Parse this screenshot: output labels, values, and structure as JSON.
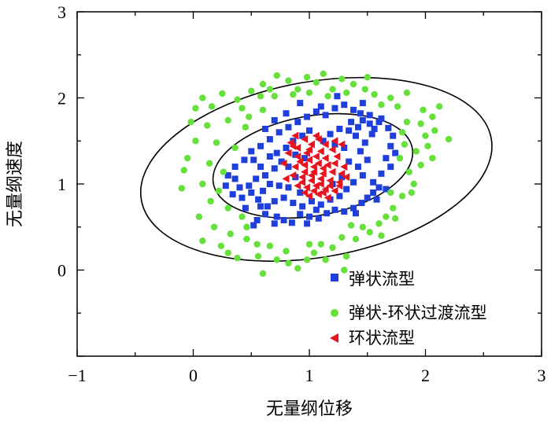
{
  "chart_data": {
    "type": "scatter",
    "title": "",
    "xlabel": "无量纲位移",
    "ylabel": "无量纲速度",
    "xlim": [
      -1,
      3
    ],
    "ylim": [
      -1,
      3
    ],
    "xticks": [
      "−1",
      "0",
      "1",
      "2",
      "3"
    ],
    "yticks": [
      "0",
      "1",
      "2",
      "3"
    ],
    "grid": false,
    "legend_position": "bottom-right",
    "ellipses": [
      {
        "name": "inner-boundary",
        "center": [
          1.03,
          1.21
        ],
        "semi_axes": [
          0.87,
          0.58
        ],
        "angle_deg": 10
      },
      {
        "name": "outer-boundary",
        "center": [
          1.06,
          1.17
        ],
        "semi_axes": [
          1.53,
          1.02
        ],
        "angle_deg": 10
      }
    ],
    "series": [
      {
        "name": "弹状流型",
        "marker": "square",
        "color": "#1f3fdc",
        "points": [
          [
            0.52,
            0.52
          ],
          [
            0.55,
            0.58
          ],
          [
            0.62,
            0.65
          ],
          [
            0.45,
            0.72
          ],
          [
            0.58,
            0.74
          ],
          [
            0.72,
            0.62
          ],
          [
            0.78,
            0.58
          ],
          [
            0.85,
            0.55
          ],
          [
            0.92,
            0.65
          ],
          [
            1.0,
            0.62
          ],
          [
            1.08,
            0.6
          ],
          [
            1.15,
            0.66
          ],
          [
            1.22,
            0.7
          ],
          [
            1.3,
            0.68
          ],
          [
            1.38,
            0.72
          ],
          [
            1.45,
            0.78
          ],
          [
            1.5,
            0.84
          ],
          [
            1.55,
            0.9
          ],
          [
            1.6,
            0.96
          ],
          [
            1.55,
            1.02
          ],
          [
            1.62,
            1.12
          ],
          [
            1.7,
            1.2
          ],
          [
            1.66,
            1.3
          ],
          [
            1.7,
            1.44
          ],
          [
            1.72,
            1.56
          ],
          [
            1.68,
            1.65
          ],
          [
            1.6,
            1.72
          ],
          [
            1.52,
            1.8
          ],
          [
            1.44,
            1.82
          ],
          [
            1.38,
            1.86
          ],
          [
            1.3,
            1.92
          ],
          [
            1.22,
            1.88
          ],
          [
            1.14,
            1.8
          ],
          [
            1.06,
            1.84
          ],
          [
            0.98,
            1.78
          ],
          [
            0.9,
            1.72
          ],
          [
            0.82,
            1.66
          ],
          [
            0.74,
            1.6
          ],
          [
            0.66,
            1.52
          ],
          [
            0.58,
            1.44
          ],
          [
            0.5,
            1.38
          ],
          [
            0.44,
            1.28
          ],
          [
            0.36,
            1.2
          ],
          [
            0.3,
            1.1
          ],
          [
            0.28,
            0.98
          ],
          [
            0.34,
            0.88
          ],
          [
            0.42,
            0.84
          ],
          [
            0.5,
            0.9
          ],
          [
            0.6,
            0.92
          ],
          [
            0.66,
            1.0
          ],
          [
            0.62,
            1.1
          ],
          [
            0.7,
            1.18
          ],
          [
            0.76,
            1.26
          ],
          [
            0.72,
            1.36
          ],
          [
            0.8,
            1.42
          ],
          [
            0.86,
            1.5
          ],
          [
            0.94,
            1.56
          ],
          [
            1.0,
            1.62
          ],
          [
            1.18,
            1.58
          ],
          [
            1.26,
            1.64
          ],
          [
            1.34,
            1.62
          ],
          [
            1.42,
            1.66
          ],
          [
            1.4,
            1.56
          ],
          [
            1.48,
            1.48
          ],
          [
            1.44,
            1.38
          ],
          [
            1.5,
            1.28
          ],
          [
            1.42,
            1.2
          ],
          [
            1.46,
            1.1
          ],
          [
            1.38,
            1.02
          ],
          [
            1.32,
            0.94
          ],
          [
            1.26,
            0.86
          ],
          [
            1.18,
            0.82
          ],
          [
            1.1,
            0.76
          ],
          [
            1.02,
            0.8
          ],
          [
            0.94,
            0.74
          ],
          [
            0.86,
            0.78
          ],
          [
            0.78,
            0.84
          ],
          [
            0.7,
            0.8
          ],
          [
            0.64,
            0.74
          ],
          [
            0.56,
            0.82
          ],
          [
            0.48,
            0.98
          ],
          [
            0.54,
            1.06
          ],
          [
            0.58,
            1.2
          ],
          [
            0.52,
            1.28
          ],
          [
            0.66,
            1.32
          ],
          [
            0.82,
            1.2
          ],
          [
            0.88,
            1.08
          ],
          [
            0.82,
            0.96
          ],
          [
            0.92,
            0.9
          ],
          [
            1.2,
            1.0
          ],
          [
            1.28,
            1.08
          ],
          [
            1.34,
            1.26
          ],
          [
            1.3,
            1.42
          ],
          [
            1.22,
            1.46
          ],
          [
            1.12,
            1.5
          ],
          [
            1.56,
            1.64
          ],
          [
            1.62,
            1.76
          ],
          [
            1.36,
            1.72
          ],
          [
            1.46,
            1.94
          ],
          [
            1.24,
            2.02
          ],
          [
            1.1,
            1.9
          ],
          [
            0.92,
            1.94
          ],
          [
            0.8,
            1.82
          ],
          [
            0.7,
            1.74
          ],
          [
            0.62,
            1.64
          ],
          [
            1.74,
            1.36
          ],
          [
            1.66,
            0.94
          ],
          [
            1.58,
            0.82
          ],
          [
            1.4,
            0.66
          ],
          [
            0.98,
            0.54
          ],
          [
            0.7,
            0.54
          ],
          [
            0.4,
            0.96
          ],
          [
            0.36,
            1.06
          ],
          [
            0.74,
            0.98
          ],
          [
            1.06,
            0.7
          ],
          [
            1.52,
            1.7
          ],
          [
            1.46,
            1.74
          ],
          [
            1.54,
            1.58
          ],
          [
            0.88,
            1.34
          ],
          [
            0.96,
            1.3
          ]
        ]
      },
      {
        "name": "弹状-环状过渡流型",
        "marker": "circle",
        "color": "#66e03a",
        "points": [
          [
            0.08,
            2.0
          ],
          [
            0.25,
            2.05
          ],
          [
            0.38,
            1.98
          ],
          [
            -0.02,
            1.72
          ],
          [
            0.12,
            1.68
          ],
          [
            0.3,
            1.74
          ],
          [
            0.45,
            1.66
          ],
          [
            0.02,
            1.5
          ],
          [
            0.2,
            1.48
          ],
          [
            0.36,
            1.42
          ],
          [
            -0.05,
            1.3
          ],
          [
            0.14,
            1.24
          ],
          [
            0.26,
            1.14
          ],
          [
            0.08,
            1.0
          ],
          [
            0.22,
            0.92
          ],
          [
            -0.1,
            0.95
          ],
          [
            0.15,
            0.8
          ],
          [
            0.3,
            0.72
          ],
          [
            0.42,
            0.62
          ],
          [
            0.05,
            0.62
          ],
          [
            0.18,
            0.5
          ],
          [
            0.32,
            0.42
          ],
          [
            0.46,
            0.36
          ],
          [
            0.08,
            0.34
          ],
          [
            0.3,
            0.2
          ],
          [
            0.38,
            0.14
          ],
          [
            0.56,
            0.16
          ],
          [
            0.55,
            0.3
          ],
          [
            0.66,
            0.28
          ],
          [
            0.72,
            0.12
          ],
          [
            0.8,
            0.22
          ],
          [
            0.82,
            0.08
          ],
          [
            0.9,
            0.02
          ],
          [
            0.98,
            0.12
          ],
          [
            1.04,
            0.2
          ],
          [
            1.1,
            0.3
          ],
          [
            1.14,
            0.12
          ],
          [
            1.0,
            0.3
          ],
          [
            1.2,
            0.26
          ],
          [
            1.28,
            0.38
          ],
          [
            1.32,
            0.16
          ],
          [
            1.4,
            0.36
          ],
          [
            1.46,
            0.5
          ],
          [
            1.36,
            0.52
          ],
          [
            1.52,
            0.44
          ],
          [
            1.6,
            0.54
          ],
          [
            1.66,
            0.62
          ],
          [
            1.72,
            0.72
          ],
          [
            1.7,
            0.9
          ],
          [
            1.8,
            0.86
          ],
          [
            1.9,
            1.0
          ],
          [
            1.86,
            1.14
          ],
          [
            1.96,
            1.22
          ],
          [
            1.92,
            1.38
          ],
          [
            2.02,
            1.44
          ],
          [
            2.0,
            1.56
          ],
          [
            2.08,
            1.62
          ],
          [
            2.06,
            1.78
          ],
          [
            2.12,
            1.9
          ],
          [
            2.2,
            1.52
          ],
          [
            1.98,
            1.86
          ],
          [
            1.84,
            1.72
          ],
          [
            1.8,
            1.6
          ],
          [
            1.82,
            1.46
          ],
          [
            1.78,
            1.3
          ],
          [
            1.76,
            1.9
          ],
          [
            1.7,
            2.0
          ],
          [
            1.62,
            1.92
          ],
          [
            1.56,
            2.04
          ],
          [
            1.48,
            2.1
          ],
          [
            1.5,
            2.24
          ],
          [
            1.38,
            2.16
          ],
          [
            1.28,
            2.22
          ],
          [
            1.2,
            2.1
          ],
          [
            1.12,
            2.28
          ],
          [
            1.06,
            2.18
          ],
          [
            0.98,
            2.24
          ],
          [
            0.9,
            2.1
          ],
          [
            0.82,
            2.2
          ],
          [
            0.72,
            2.26
          ],
          [
            0.66,
            2.1
          ],
          [
            0.6,
            2.16
          ],
          [
            0.58,
            2.02
          ],
          [
            0.5,
            2.08
          ],
          [
            0.7,
            2.02
          ],
          [
            0.86,
            2.04
          ],
          [
            1.0,
            2.06
          ],
          [
            1.16,
            2.02
          ],
          [
            1.32,
            2.06
          ],
          [
            0.6,
            1.86
          ],
          [
            0.48,
            1.78
          ],
          [
            0.42,
            1.88
          ],
          [
            1.84,
            2.06
          ],
          [
            1.96,
            1.7
          ],
          [
            2.06,
            1.3
          ],
          [
            1.88,
            0.9
          ],
          [
            1.74,
            0.6
          ],
          [
            1.62,
            0.4
          ],
          [
            1.3,
            0.0
          ],
          [
            0.6,
            -0.04
          ],
          [
            0.46,
            0.5
          ],
          [
            0.24,
            0.28
          ],
          [
            -0.08,
            1.16
          ],
          [
            0.02,
            1.88
          ],
          [
            0.16,
            1.9
          ]
        ]
      },
      {
        "name": "环状流型",
        "marker": "triangle-left",
        "color": "#e8141e",
        "points": [
          [
            0.84,
            1.48
          ],
          [
            0.9,
            1.42
          ],
          [
            0.96,
            1.52
          ],
          [
            1.02,
            1.46
          ],
          [
            1.08,
            1.52
          ],
          [
            1.14,
            1.46
          ],
          [
            1.2,
            1.4
          ],
          [
            0.9,
            1.32
          ],
          [
            0.98,
            1.36
          ],
          [
            1.06,
            1.32
          ],
          [
            1.14,
            1.3
          ],
          [
            1.22,
            1.24
          ],
          [
            0.88,
            1.2
          ],
          [
            0.96,
            1.22
          ],
          [
            1.04,
            1.2
          ],
          [
            1.12,
            1.18
          ],
          [
            1.2,
            1.14
          ],
          [
            1.28,
            1.12
          ],
          [
            0.86,
            1.1
          ],
          [
            0.94,
            1.08
          ],
          [
            1.02,
            1.1
          ],
          [
            1.1,
            1.06
          ],
          [
            1.18,
            1.04
          ],
          [
            1.26,
            1.02
          ],
          [
            0.9,
            0.98
          ],
          [
            0.98,
            0.96
          ],
          [
            1.06,
            0.98
          ],
          [
            1.14,
            0.94
          ],
          [
            1.22,
            0.92
          ],
          [
            1.0,
            0.86
          ],
          [
            1.08,
            0.88
          ],
          [
            1.16,
            0.84
          ],
          [
            0.92,
            1.26
          ],
          [
            1.0,
            1.28
          ],
          [
            1.08,
            1.24
          ],
          [
            1.16,
            1.22
          ],
          [
            0.96,
            1.14
          ],
          [
            1.04,
            1.14
          ],
          [
            1.12,
            1.12
          ],
          [
            0.94,
            1.02
          ],
          [
            1.02,
            1.04
          ],
          [
            1.1,
            1.0
          ],
          [
            1.18,
            0.98
          ],
          [
            0.82,
            1.36
          ],
          [
            1.24,
            1.32
          ],
          [
            1.3,
            1.2
          ],
          [
            1.32,
            1.08
          ],
          [
            0.8,
            1.06
          ],
          [
            0.78,
            1.24
          ],
          [
            1.06,
            1.56
          ],
          [
            0.88,
            1.56
          ],
          [
            1.22,
            1.5
          ],
          [
            1.28,
            1.46
          ],
          [
            1.12,
            0.9
          ],
          [
            0.96,
            0.9
          ],
          [
            1.0,
            1.4
          ],
          [
            1.1,
            1.38
          ],
          [
            0.86,
            1.44
          ],
          [
            1.26,
            0.98
          ],
          [
            1.04,
            0.92
          ]
        ]
      }
    ]
  }
}
